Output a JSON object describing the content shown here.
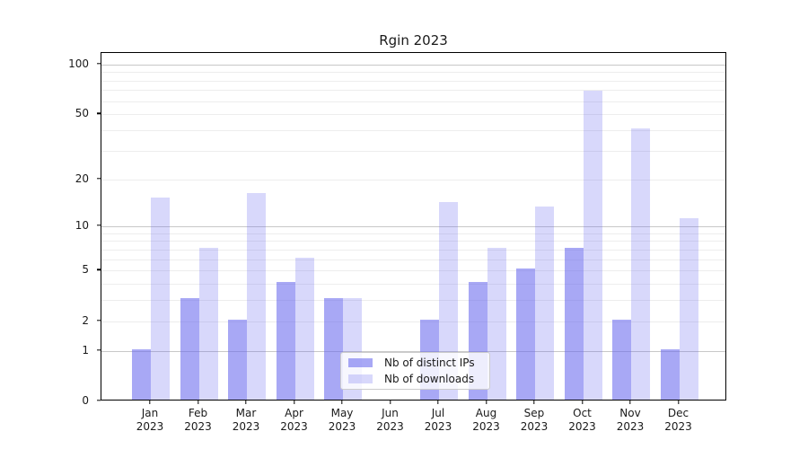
{
  "chart_data": {
    "type": "bar",
    "title": "Rgin 2023",
    "xlabel": "",
    "ylabel": "",
    "categories": [
      "Jan 2023",
      "Feb 2023",
      "Mar 2023",
      "Apr 2023",
      "May 2023",
      "Jun 2023",
      "Jul 2023",
      "Aug 2023",
      "Sep 2023",
      "Oct 2023",
      "Nov 2023",
      "Dec 2023"
    ],
    "series": [
      {
        "name": "Nb of distinct IPs",
        "slug": "distinct-ips",
        "values": [
          1,
          3,
          2,
          4,
          3,
          0,
          2,
          4,
          5,
          7,
          2,
          1
        ],
        "color": "#6969ee",
        "alpha": 0.58,
        "display_color": "#a8a8f5"
      },
      {
        "name": "Nb of downloads",
        "slug": "downloads",
        "values": [
          15,
          7,
          16,
          6,
          3,
          0,
          14,
          7,
          13,
          68,
          40,
          11
        ],
        "color": "#6969ee",
        "alpha": 0.26,
        "display_color": "#d8d8fa"
      }
    ],
    "yscale": "log1p",
    "ylim": [
      0,
      117
    ],
    "ytick_values": [
      0,
      1,
      2,
      5,
      10,
      20,
      50,
      100
    ],
    "ytick_labels": [
      "0",
      "1",
      "2",
      "5",
      "10",
      "20",
      "50",
      "100"
    ],
    "major_gridlines": [
      1,
      10,
      100
    ],
    "minor_gridlines": [
      2,
      3,
      4,
      5,
      6,
      7,
      8,
      9,
      20,
      30,
      40,
      50,
      60,
      70,
      80,
      90
    ],
    "grid": "horizontal",
    "legend_position": "lower-center",
    "colors": {
      "major_grid": "#c8c8c8",
      "minor_grid": "#ededed",
      "axis": "#000000",
      "text": "#1a1a1a",
      "background": "#ffffff"
    }
  }
}
